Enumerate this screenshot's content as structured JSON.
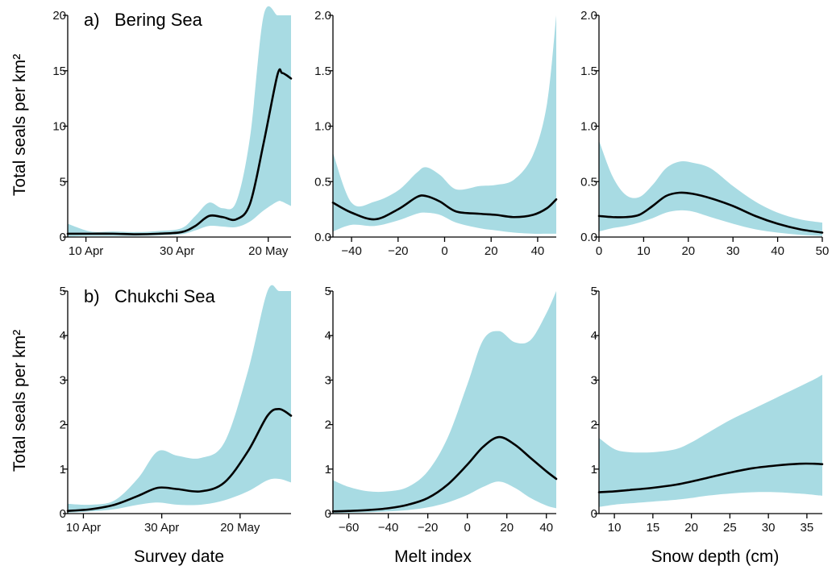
{
  "ylabel_top": "Total seals per km²",
  "ylabel_bottom": "Total seals per km²",
  "xlabels": [
    "Survey date",
    "Melt index",
    "Snow depth (cm)"
  ],
  "panel_labels": {
    "a": "a)",
    "a_region": "Bering Sea",
    "b": "b)",
    "b_region": "Chukchi Sea"
  },
  "colors": {
    "band": "#a8dbe3",
    "curve": "#000000"
  },
  "chart_data": [
    {
      "type": "line",
      "panel": "a",
      "region": "Bering Sea",
      "xlabel": "",
      "ylabel": "Total seals per km²",
      "xlim": [
        "2005-04-06",
        "2005-05-25"
      ],
      "ylim": [
        0,
        20
      ],
      "xticks": [
        {
          "value": "2005-04-10",
          "label": "10 Apr"
        },
        {
          "value": "2005-04-30",
          "label": "30 Apr"
        },
        {
          "value": "2005-05-20",
          "label": "20 May"
        }
      ],
      "yticks": [
        {
          "value": 0,
          "label": "0"
        },
        {
          "value": 5,
          "label": "5"
        },
        {
          "value": 10,
          "label": "10"
        },
        {
          "value": 15,
          "label": "15"
        },
        {
          "value": 20,
          "label": "20"
        }
      ],
      "x": [
        "2005-04-06",
        "2005-04-11",
        "2005-04-16",
        "2005-04-21",
        "2005-04-26",
        "2005-05-01",
        "2005-05-04",
        "2005-05-07",
        "2005-05-10",
        "2005-05-13",
        "2005-05-16",
        "2005-05-19",
        "2005-05-22",
        "2005-05-23",
        "2005-05-24",
        "2005-05-25"
      ],
      "series": [
        {
          "values": [
            0.3,
            0.3,
            0.3,
            0.25,
            0.3,
            0.45,
            1.0,
            1.9,
            1.8,
            1.6,
            3.0,
            8.5,
            14.6,
            14.8,
            14.6,
            14.3
          ]
        },
        {
          "role": "lower",
          "values": [
            0.05,
            0.1,
            0.1,
            0.1,
            0.15,
            0.25,
            0.6,
            1.0,
            0.95,
            0.9,
            1.4,
            2.4,
            3.2,
            3.2,
            3.0,
            2.8
          ]
        },
        {
          "role": "upper",
          "values": [
            1.2,
            0.5,
            0.5,
            0.45,
            0.55,
            0.8,
            1.9,
            3.1,
            2.6,
            3.2,
            9.0,
            20,
            20,
            20,
            20,
            20
          ]
        }
      ]
    },
    {
      "type": "line",
      "panel": "a",
      "region": "Bering Sea",
      "xlabel": "",
      "ylabel": "",
      "xlim": [
        -48,
        48
      ],
      "ylim": [
        0,
        2
      ],
      "xticks": [
        {
          "value": -40,
          "label": "−40"
        },
        {
          "value": -20,
          "label": "−20"
        },
        {
          "value": 0,
          "label": "0"
        },
        {
          "value": 20,
          "label": "20"
        },
        {
          "value": 40,
          "label": "40"
        }
      ],
      "yticks": [
        {
          "value": 0,
          "label": "0.0"
        },
        {
          "value": 0.5,
          "label": "0.5"
        },
        {
          "value": 1.0,
          "label": "1.0"
        },
        {
          "value": 1.5,
          "label": "1.5"
        },
        {
          "value": 2.0,
          "label": "2.0"
        }
      ],
      "x": [
        -48,
        -40,
        -30,
        -20,
        -12,
        -8,
        -2,
        5,
        15,
        22,
        30,
        38,
        44,
        48
      ],
      "series": [
        {
          "values": [
            0.31,
            0.22,
            0.16,
            0.25,
            0.36,
            0.37,
            0.32,
            0.23,
            0.21,
            0.2,
            0.18,
            0.2,
            0.26,
            0.34
          ]
        },
        {
          "role": "lower",
          "values": [
            0.05,
            0.11,
            0.1,
            0.15,
            0.21,
            0.22,
            0.2,
            0.13,
            0.08,
            0.06,
            0.04,
            0.03,
            0.03,
            0.03
          ]
        },
        {
          "role": "upper",
          "values": [
            0.76,
            0.31,
            0.32,
            0.42,
            0.58,
            0.63,
            0.56,
            0.43,
            0.46,
            0.47,
            0.52,
            0.74,
            1.2,
            2.0
          ]
        }
      ]
    },
    {
      "type": "line",
      "panel": "a",
      "region": "Bering Sea",
      "xlabel": "",
      "ylabel": "",
      "xlim": [
        0,
        50
      ],
      "ylim": [
        0,
        2
      ],
      "xticks": [
        {
          "value": 0,
          "label": "0"
        },
        {
          "value": 10,
          "label": "10"
        },
        {
          "value": 20,
          "label": "20"
        },
        {
          "value": 30,
          "label": "30"
        },
        {
          "value": 40,
          "label": "40"
        },
        {
          "value": 50,
          "label": "50"
        }
      ],
      "yticks": [
        {
          "value": 0,
          "label": "0.0"
        },
        {
          "value": 0.5,
          "label": "0.5"
        },
        {
          "value": 1.0,
          "label": "1.0"
        },
        {
          "value": 1.5,
          "label": "1.5"
        },
        {
          "value": 2.0,
          "label": "2.0"
        }
      ],
      "x": [
        0,
        3,
        6,
        9,
        12,
        15,
        18,
        21,
        25,
        30,
        35,
        40,
        45,
        50
      ],
      "series": [
        {
          "values": [
            0.19,
            0.18,
            0.18,
            0.2,
            0.28,
            0.37,
            0.4,
            0.39,
            0.35,
            0.28,
            0.19,
            0.12,
            0.07,
            0.04
          ]
        },
        {
          "role": "lower",
          "values": [
            0.05,
            0.08,
            0.1,
            0.13,
            0.17,
            0.22,
            0.24,
            0.23,
            0.18,
            0.12,
            0.07,
            0.04,
            0.02,
            0.01
          ]
        },
        {
          "role": "upper",
          "values": [
            0.87,
            0.55,
            0.38,
            0.36,
            0.47,
            0.62,
            0.68,
            0.67,
            0.62,
            0.46,
            0.32,
            0.22,
            0.16,
            0.13
          ]
        }
      ]
    },
    {
      "type": "line",
      "panel": "b",
      "region": "Chukchi Sea",
      "xlabel": "Survey date",
      "ylabel": "Total seals per km²",
      "xlim": [
        "2005-04-06",
        "2005-06-02"
      ],
      "ylim": [
        0,
        5
      ],
      "xticks": [
        {
          "value": "2005-04-10",
          "label": "10 Apr"
        },
        {
          "value": "2005-04-30",
          "label": "30 Apr"
        },
        {
          "value": "2005-05-20",
          "label": "20 May"
        }
      ],
      "yticks": [
        {
          "value": 0,
          "label": "0"
        },
        {
          "value": 1,
          "label": "1"
        },
        {
          "value": 2,
          "label": "2"
        },
        {
          "value": 3,
          "label": "3"
        },
        {
          "value": 4,
          "label": "4"
        },
        {
          "value": 5,
          "label": "5"
        }
      ],
      "x": [
        "2005-04-06",
        "2005-04-12",
        "2005-04-18",
        "2005-04-24",
        "2005-04-29",
        "2005-05-04",
        "2005-05-10",
        "2005-05-16",
        "2005-05-22",
        "2005-05-27",
        "2005-05-30",
        "2005-06-02"
      ],
      "series": [
        {
          "values": [
            0.06,
            0.1,
            0.2,
            0.4,
            0.58,
            0.55,
            0.5,
            0.7,
            1.4,
            2.2,
            2.35,
            2.2
          ]
        },
        {
          "role": "lower",
          "values": [
            0.02,
            0.05,
            0.1,
            0.2,
            0.25,
            0.2,
            0.2,
            0.3,
            0.5,
            0.75,
            0.78,
            0.7
          ]
        },
        {
          "role": "upper",
          "values": [
            0.22,
            0.2,
            0.3,
            0.8,
            1.4,
            1.3,
            1.25,
            1.6,
            3.2,
            5,
            5,
            5
          ]
        }
      ]
    },
    {
      "type": "line",
      "panel": "b",
      "region": "Chukchi Sea",
      "xlabel": "Melt index",
      "ylabel": "",
      "xlim": [
        -68,
        45
      ],
      "ylim": [
        0,
        5
      ],
      "xticks": [
        {
          "value": -60,
          "label": "−60"
        },
        {
          "value": -40,
          "label": "−40"
        },
        {
          "value": -20,
          "label": "−20"
        },
        {
          "value": 0,
          "label": "0"
        },
        {
          "value": 20,
          "label": "20"
        },
        {
          "value": 40,
          "label": "40"
        }
      ],
      "yticks": [
        {
          "value": 0,
          "label": "0"
        },
        {
          "value": 1,
          "label": "1"
        },
        {
          "value": 2,
          "label": "2"
        },
        {
          "value": 3,
          "label": "3"
        },
        {
          "value": 4,
          "label": "4"
        },
        {
          "value": 5,
          "label": "5"
        }
      ],
      "x": [
        -68,
        -60,
        -50,
        -40,
        -30,
        -20,
        -10,
        0,
        8,
        16,
        24,
        32,
        40,
        45
      ],
      "series": [
        {
          "values": [
            0.05,
            0.06,
            0.08,
            0.12,
            0.2,
            0.35,
            0.65,
            1.1,
            1.5,
            1.72,
            1.55,
            1.25,
            0.95,
            0.78
          ]
        },
        {
          "role": "lower",
          "values": [
            0.01,
            0.02,
            0.03,
            0.05,
            0.08,
            0.14,
            0.25,
            0.42,
            0.6,
            0.72,
            0.58,
            0.35,
            0.18,
            0.12
          ]
        },
        {
          "role": "upper",
          "values": [
            0.75,
            0.6,
            0.5,
            0.5,
            0.6,
            0.95,
            1.7,
            2.9,
            3.9,
            4.1,
            3.85,
            3.9,
            4.5,
            5
          ]
        }
      ]
    },
    {
      "type": "line",
      "panel": "b",
      "region": "Chukchi Sea",
      "xlabel": "Snow depth (cm)",
      "ylabel": "",
      "xlim": [
        8,
        37
      ],
      "ylim": [
        0,
        5
      ],
      "xticks": [
        {
          "value": 10,
          "label": "10"
        },
        {
          "value": 15,
          "label": "15"
        },
        {
          "value": 20,
          "label": "20"
        },
        {
          "value": 25,
          "label": "25"
        },
        {
          "value": 30,
          "label": "30"
        },
        {
          "value": 35,
          "label": "35"
        }
      ],
      "yticks": [
        {
          "value": 0,
          "label": "0"
        },
        {
          "value": 1,
          "label": "1"
        },
        {
          "value": 2,
          "label": "2"
        },
        {
          "value": 3,
          "label": "3"
        },
        {
          "value": 4,
          "label": "4"
        },
        {
          "value": 5,
          "label": "5"
        }
      ],
      "x": [
        8,
        10,
        12,
        15,
        18,
        20,
        22,
        25,
        28,
        31,
        34,
        36,
        37
      ],
      "series": [
        {
          "values": [
            0.48,
            0.5,
            0.53,
            0.58,
            0.65,
            0.72,
            0.8,
            0.92,
            1.02,
            1.08,
            1.12,
            1.12,
            1.11
          ]
        },
        {
          "role": "lower",
          "values": [
            0.15,
            0.2,
            0.23,
            0.27,
            0.31,
            0.35,
            0.4,
            0.45,
            0.48,
            0.48,
            0.45,
            0.42,
            0.4
          ]
        },
        {
          "role": "upper",
          "values": [
            1.7,
            1.45,
            1.38,
            1.38,
            1.45,
            1.6,
            1.8,
            2.1,
            2.35,
            2.6,
            2.85,
            3.02,
            3.12
          ]
        }
      ]
    }
  ]
}
